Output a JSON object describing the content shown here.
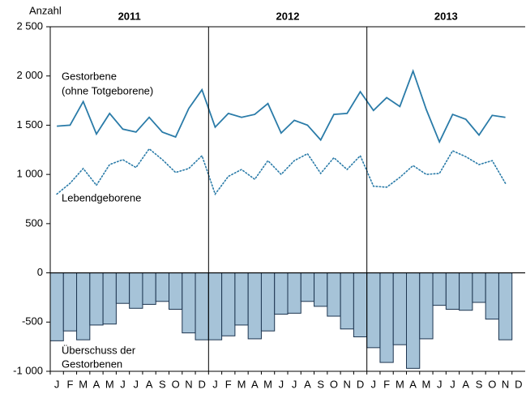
{
  "chart_data": {
    "type": "combo",
    "y_label": "Anzahl",
    "years": [
      "2011",
      "2012",
      "2013"
    ],
    "categories": [
      "J",
      "F",
      "M",
      "A",
      "M",
      "J",
      "J",
      "A",
      "S",
      "O",
      "N",
      "D",
      "J",
      "F",
      "M",
      "A",
      "M",
      "J",
      "J",
      "A",
      "S",
      "O",
      "N",
      "D",
      "J",
      "F",
      "M",
      "A",
      "M",
      "J",
      "J",
      "A",
      "S",
      "O",
      "N",
      "D"
    ],
    "ylim": [
      -1000,
      2500
    ],
    "yticks": [
      {
        "value": 2500,
        "label": "2 500"
      },
      {
        "value": 2000,
        "label": "2 000"
      },
      {
        "value": 1500,
        "label": "1 500"
      },
      {
        "value": 1000,
        "label": "1 000"
      },
      500,
      0,
      -500,
      {
        "value": -1000,
        "label": "-1 000"
      }
    ],
    "series": [
      {
        "name": [
          "Gestorbene",
          "(ohne Totgeborene)"
        ],
        "type": "line",
        "style": "solid",
        "color": "#2a7ba8",
        "values": [
          1490,
          1500,
          1740,
          1410,
          1620,
          1460,
          1430,
          1580,
          1430,
          1380,
          1670,
          1860,
          1480,
          1620,
          1580,
          1610,
          1720,
          1420,
          1550,
          1500,
          1350,
          1610,
          1620,
          1840,
          1650,
          1780,
          1690,
          2050,
          1660,
          1330,
          1610,
          1560,
          1400,
          1600,
          1580,
          null
        ]
      },
      {
        "name": [
          "Lebendgeborene"
        ],
        "type": "line",
        "style": "dotted",
        "color": "#2a7ba8",
        "values": [
          800,
          910,
          1060,
          890,
          1100,
          1150,
          1070,
          1260,
          1150,
          1020,
          1060,
          1190,
          800,
          980,
          1050,
          950,
          1140,
          1000,
          1140,
          1210,
          1010,
          1170,
          1050,
          1190,
          880,
          870,
          970,
          1090,
          1000,
          1010,
          1240,
          1180,
          1100,
          1140,
          910,
          null
        ]
      },
      {
        "name": [
          "Überschuss der",
          "Gestorbenen"
        ],
        "type": "bar",
        "color": "#a6c3d8",
        "values": [
          -690,
          -590,
          -680,
          -530,
          -520,
          -310,
          -360,
          -320,
          -290,
          -370,
          -610,
          -680,
          -680,
          -640,
          -530,
          -670,
          -590,
          -420,
          -410,
          -290,
          -340,
          -440,
          -570,
          -650,
          -760,
          -910,
          -730,
          -970,
          -670,
          -330,
          -370,
          -380,
          -300,
          -470,
          -680,
          null
        ]
      }
    ]
  }
}
